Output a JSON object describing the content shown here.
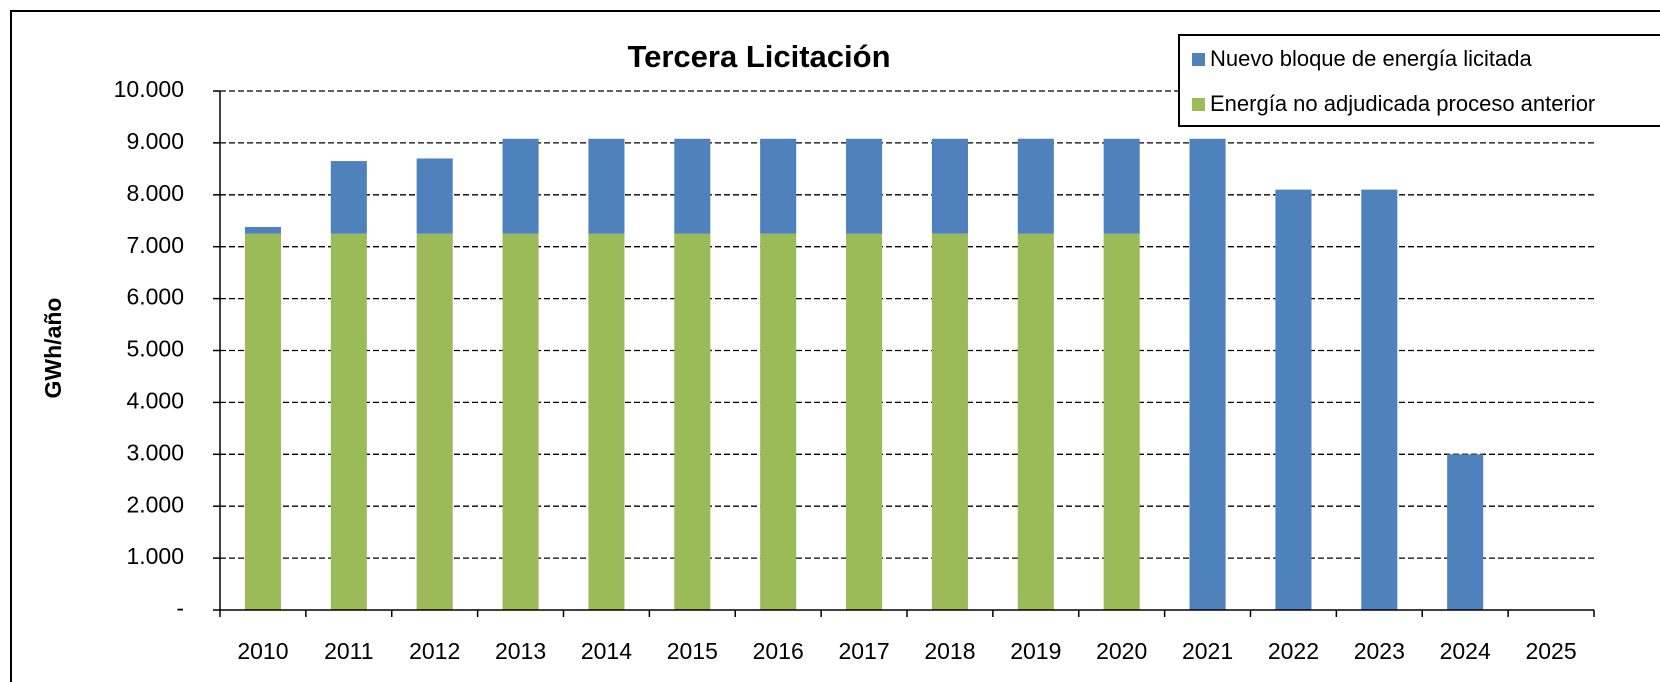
{
  "chart_data": {
    "type": "stacked_bar",
    "title": "Tercera Licitación",
    "y_label": "GWh/año",
    "categories": [
      "2010",
      "2011",
      "2012",
      "2013",
      "2014",
      "2015",
      "2016",
      "2017",
      "2018",
      "2019",
      "2020",
      "2021",
      "2022",
      "2023",
      "2024",
      "2025"
    ],
    "series": [
      {
        "name": "Energía no adjudicada proceso anterior",
        "color": "#9bbb59",
        "values": [
          7250,
          7250,
          7250,
          7250,
          7250,
          7250,
          7250,
          7250,
          7250,
          7250,
          7250,
          null,
          null,
          null,
          null,
          null
        ]
      },
      {
        "name": "Nuevo bloque de energía licitada",
        "color": "#4f81bd",
        "values": [
          130,
          1400,
          1450,
          1830,
          1830,
          1830,
          1830,
          1830,
          1830,
          1830,
          1830,
          9080,
          8100,
          8100,
          3000,
          null
        ]
      }
    ],
    "ylim": [
      0,
      10000
    ],
    "yticks": [
      {
        "value": 0,
        "label": "-"
      },
      {
        "value": 1000,
        "label": "1.000"
      },
      {
        "value": 2000,
        "label": "2.000"
      },
      {
        "value": 3000,
        "label": "3.000"
      },
      {
        "value": 4000,
        "label": "4.000"
      },
      {
        "value": 5000,
        "label": "5.000"
      },
      {
        "value": 6000,
        "label": "6.000"
      },
      {
        "value": 7000,
        "label": "7.000"
      },
      {
        "value": 8000,
        "label": "8.000"
      },
      {
        "value": 9000,
        "label": "9.000"
      },
      {
        "value": 10000,
        "label": "10.000"
      }
    ],
    "grid": true,
    "legend": "top-right"
  }
}
